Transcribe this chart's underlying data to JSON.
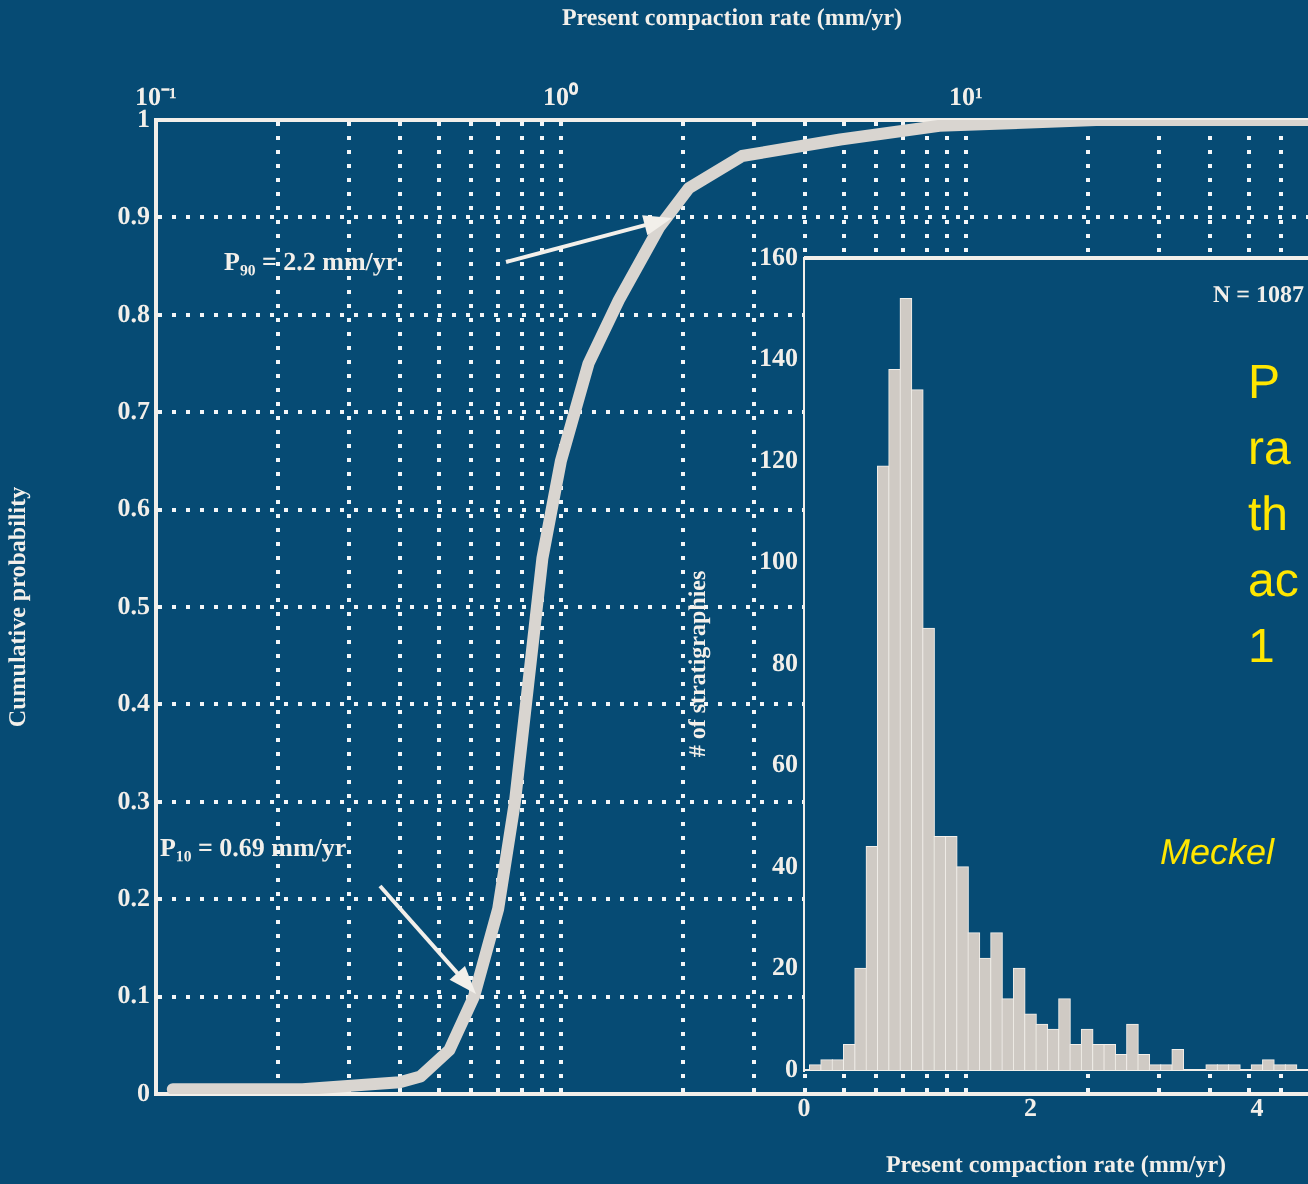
{
  "chart_data": [
    {
      "type": "line",
      "xlabel": "Present compaction rate (mm/yr)",
      "ylabel": "Cumulative probability",
      "log": "x",
      "xlim": [
        0.1,
        70
      ],
      "xticks": [
        {
          "value": 0.1,
          "label": "10⁻¹"
        },
        {
          "value": 0.2,
          "label": null
        },
        {
          "value": 0.3,
          "label": null
        },
        {
          "value": 0.4,
          "label": null
        },
        {
          "value": 0.5,
          "label": null
        },
        {
          "value": 0.6,
          "label": null
        },
        {
          "value": 0.7,
          "label": null
        },
        {
          "value": 0.8,
          "label": null
        },
        {
          "value": 0.9,
          "label": null
        },
        {
          "value": 1,
          "label": "10⁰"
        },
        {
          "value": 2,
          "label": null
        },
        {
          "value": 3,
          "label": null
        },
        {
          "value": 4,
          "label": null
        },
        {
          "value": 5,
          "label": null
        },
        {
          "value": 6,
          "label": null
        },
        {
          "value": 7,
          "label": null
        },
        {
          "value": 8,
          "label": null
        },
        {
          "value": 9,
          "label": null
        },
        {
          "value": 10,
          "label": "10¹"
        },
        {
          "value": 20,
          "label": null
        },
        {
          "value": 30,
          "label": null
        },
        {
          "value": 40,
          "label": null
        },
        {
          "value": 50,
          "label": null
        },
        {
          "value": 60,
          "label": null
        }
      ],
      "ylim": [
        0,
        1
      ],
      "yticks": [
        0,
        0.1,
        0.2,
        0.3,
        0.4,
        0.5,
        0.6,
        0.7,
        0.8,
        0.9,
        1
      ],
      "grid": true,
      "legend": false,
      "series": [
        {
          "color": "#d9d5d0",
          "x": [
            0.11,
            0.23,
            0.4,
            0.45,
            0.53,
            0.61,
            0.7,
            0.77,
            0.83,
            0.9,
            1.0,
            1.17,
            1.39,
            1.75,
            2.07,
            2.8,
            4.9,
            8.6,
            21,
            70
          ],
          "values": [
            0.005,
            0.005,
            0.012,
            0.018,
            0.045,
            0.1,
            0.19,
            0.3,
            0.42,
            0.55,
            0.65,
            0.75,
            0.815,
            0.89,
            0.93,
            0.963,
            0.98,
            0.994,
            1,
            1
          ]
        }
      ],
      "annotations": [
        "P₁₀ = 0.69 mm/yr",
        "P₉₀ = 2.2 mm/yr"
      ]
    },
    {
      "type": "histogram",
      "xlabel": "Present compaction rate (mm/yr)",
      "ylabel": "# of stratigraphies",
      "xlim": [
        0,
        4.45
      ],
      "xticks": [
        0,
        2,
        4
      ],
      "ylim": [
        0,
        160
      ],
      "yticks": [
        0,
        20,
        40,
        60,
        80,
        100,
        120,
        140,
        160
      ],
      "color": "#cfcac4",
      "bins": [
        0.05,
        0.15,
        0.25,
        0.35,
        0.45,
        0.55,
        0.65,
        0.75,
        0.85,
        0.95,
        1.05,
        1.15,
        1.25,
        1.35,
        1.45,
        1.55,
        1.65,
        1.75,
        1.85,
        1.95,
        2.05,
        2.15,
        2.25,
        2.35,
        2.45,
        2.55,
        2.65,
        2.75,
        2.85,
        2.95,
        3.05,
        3.15,
        3.25,
        3.35,
        3.45,
        3.55,
        3.65,
        3.75,
        3.85,
        3.95,
        4.05,
        4.15,
        4.25,
        4.35,
        4.45
      ],
      "values": [
        1,
        2,
        2,
        5,
        20,
        44,
        119,
        138,
        152,
        134,
        87,
        46,
        46,
        40,
        27,
        22,
        27,
        14,
        20,
        11,
        9,
        8,
        14,
        5,
        8,
        5,
        5,
        3,
        9,
        3,
        1,
        1,
        4,
        0,
        0,
        1,
        1,
        1,
        0,
        1,
        2,
        1,
        1,
        0
      ],
      "annotations": [
        "N = 1087",
        "P\nra\nth\nac\n1",
        "Meckel"
      ]
    }
  ]
}
